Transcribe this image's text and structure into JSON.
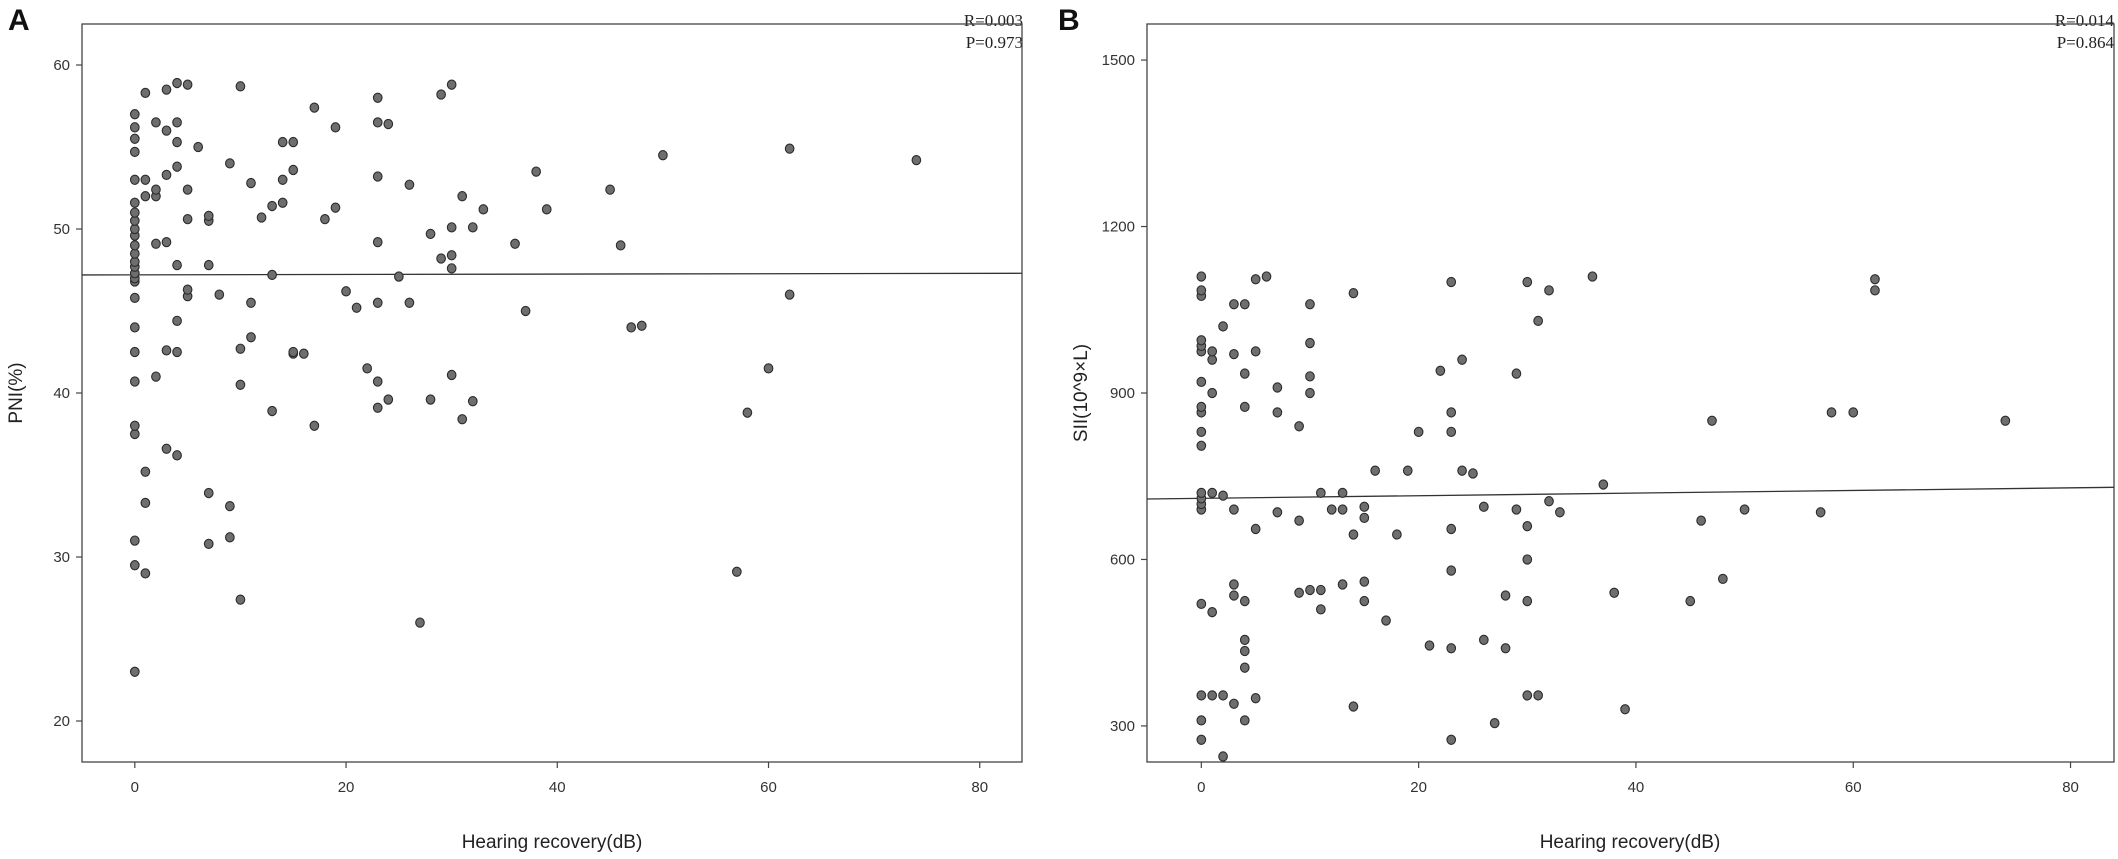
{
  "chart_data": [
    {
      "type": "scatter",
      "panel_label": "A",
      "title": "",
      "xlabel": "Hearing recovery(dB)",
      "ylabel": "PNI(%)",
      "xlim": [
        -5,
        84
      ],
      "ylim": [
        17.5,
        62.5
      ],
      "x_ticks": [
        0,
        20,
        40,
        60,
        80
      ],
      "y_ticks": [
        20,
        30,
        40,
        50,
        60
      ],
      "grid": false,
      "annotation": [
        "R=0.003",
        "P=0.973"
      ],
      "fit_line": {
        "x": [
          -5,
          84
        ],
        "y": [
          47.2,
          47.3
        ]
      },
      "points": [
        [
          0,
          23.0
        ],
        [
          0,
          29.5
        ],
        [
          0,
          31.0
        ],
        [
          0,
          37.5
        ],
        [
          0,
          38.0
        ],
        [
          0,
          40.7
        ],
        [
          0,
          42.5
        ],
        [
          0,
          44.0
        ],
        [
          0,
          45.8
        ],
        [
          0,
          46.8
        ],
        [
          0,
          47.0
        ],
        [
          0,
          47.3
        ],
        [
          0,
          47.7
        ],
        [
          0,
          48.0
        ],
        [
          0,
          48.5
        ],
        [
          0,
          49.0
        ],
        [
          0,
          49.6
        ],
        [
          0,
          50.0
        ],
        [
          0,
          50.5
        ],
        [
          0,
          51.0
        ],
        [
          0,
          51.6
        ],
        [
          0,
          53.0
        ],
        [
          0,
          54.7
        ],
        [
          0,
          55.5
        ],
        [
          0,
          56.2
        ],
        [
          0,
          57.0
        ],
        [
          1,
          29.0
        ],
        [
          1,
          33.3
        ],
        [
          1,
          35.2
        ],
        [
          1,
          52.0
        ],
        [
          1,
          53.0
        ],
        [
          1,
          58.3
        ],
        [
          2,
          41.0
        ],
        [
          2,
          49.1
        ],
        [
          2,
          52.0
        ],
        [
          2,
          52.4
        ],
        [
          2,
          56.5
        ],
        [
          3,
          36.6
        ],
        [
          3,
          42.6
        ],
        [
          3,
          49.2
        ],
        [
          3,
          53.3
        ],
        [
          3,
          56.0
        ],
        [
          3,
          58.5
        ],
        [
          4,
          36.2
        ],
        [
          4,
          42.5
        ],
        [
          4,
          44.4
        ],
        [
          4,
          47.8
        ],
        [
          4,
          53.8
        ],
        [
          4,
          55.3
        ],
        [
          4,
          56.5
        ],
        [
          4,
          58.9
        ],
        [
          5,
          45.9
        ],
        [
          5,
          46.3
        ],
        [
          5,
          50.6
        ],
        [
          5,
          52.4
        ],
        [
          5,
          58.8
        ],
        [
          6,
          55.0
        ],
        [
          7,
          30.8
        ],
        [
          7,
          33.9
        ],
        [
          7,
          47.8
        ],
        [
          7,
          50.5
        ],
        [
          7,
          50.8
        ],
        [
          8,
          46.0
        ],
        [
          9,
          31.2
        ],
        [
          9,
          33.1
        ],
        [
          9,
          54.0
        ],
        [
          10,
          27.4
        ],
        [
          10,
          40.5
        ],
        [
          10,
          42.7
        ],
        [
          10,
          58.7
        ],
        [
          11,
          43.4
        ],
        [
          11,
          45.5
        ],
        [
          11,
          52.8
        ],
        [
          12,
          50.7
        ],
        [
          13,
          38.9
        ],
        [
          13,
          47.2
        ],
        [
          13,
          51.4
        ],
        [
          14,
          51.6
        ],
        [
          14,
          53.0
        ],
        [
          14,
          55.3
        ],
        [
          15,
          42.4
        ],
        [
          15,
          42.5
        ],
        [
          15,
          53.6
        ],
        [
          15,
          55.3
        ],
        [
          16,
          42.4
        ],
        [
          17,
          38.0
        ],
        [
          17,
          57.4
        ],
        [
          18,
          50.6
        ],
        [
          19,
          51.3
        ],
        [
          19,
          56.2
        ],
        [
          20,
          46.2
        ],
        [
          21,
          45.2
        ],
        [
          22,
          41.5
        ],
        [
          23,
          39.1
        ],
        [
          23,
          40.7
        ],
        [
          23,
          45.5
        ],
        [
          23,
          49.2
        ],
        [
          23,
          53.2
        ],
        [
          23,
          56.5
        ],
        [
          23,
          58.0
        ],
        [
          24,
          39.6
        ],
        [
          24,
          56.4
        ],
        [
          25,
          47.1
        ],
        [
          26,
          45.5
        ],
        [
          26,
          52.7
        ],
        [
          27,
          26.0
        ],
        [
          28,
          39.6
        ],
        [
          28,
          49.7
        ],
        [
          29,
          48.2
        ],
        [
          29,
          58.2
        ],
        [
          30,
          41.1
        ],
        [
          30,
          47.6
        ],
        [
          30,
          48.4
        ],
        [
          30,
          50.1
        ],
        [
          30,
          58.8
        ],
        [
          31,
          38.4
        ],
        [
          31,
          52.0
        ],
        [
          32,
          39.5
        ],
        [
          32,
          50.1
        ],
        [
          33,
          51.2
        ],
        [
          36,
          49.1
        ],
        [
          37,
          45.0
        ],
        [
          38,
          53.5
        ],
        [
          39,
          51.2
        ],
        [
          45,
          52.4
        ],
        [
          46,
          49.0
        ],
        [
          47,
          44.0
        ],
        [
          48,
          44.1
        ],
        [
          50,
          54.5
        ],
        [
          57,
          29.1
        ],
        [
          58,
          38.8
        ],
        [
          60,
          41.5
        ],
        [
          62,
          46.0
        ],
        [
          62,
          54.9
        ],
        [
          74,
          54.2
        ]
      ]
    },
    {
      "type": "scatter",
      "panel_label": "B",
      "title": "",
      "xlabel": "Hearing recovery(dB)",
      "ylabel": "SII(10^9×L)",
      "xlim": [
        -5,
        84
      ],
      "ylim": [
        235,
        1565
      ],
      "x_ticks": [
        0,
        20,
        40,
        60,
        80
      ],
      "y_ticks": [
        300,
        600,
        900,
        1200,
        1500
      ],
      "grid": false,
      "annotation": [
        "R=0.014",
        "P=0.864"
      ],
      "fit_line": {
        "x": [
          -5,
          84
        ],
        "y": [
          709,
          730
        ]
      },
      "points": [
        [
          0,
          275
        ],
        [
          0,
          310
        ],
        [
          0,
          355
        ],
        [
          0,
          520
        ],
        [
          0,
          690
        ],
        [
          0,
          700
        ],
        [
          0,
          710
        ],
        [
          0,
          720
        ],
        [
          0,
          805
        ],
        [
          0,
          830
        ],
        [
          0,
          865
        ],
        [
          0,
          875
        ],
        [
          0,
          920
        ],
        [
          0,
          975
        ],
        [
          0,
          985
        ],
        [
          0,
          995
        ],
        [
          0,
          1075
        ],
        [
          0,
          1085
        ],
        [
          0,
          1110
        ],
        [
          1,
          355
        ],
        [
          1,
          505
        ],
        [
          1,
          720
        ],
        [
          1,
          900
        ],
        [
          1,
          960
        ],
        [
          1,
          975
        ],
        [
          2,
          245
        ],
        [
          2,
          355
        ],
        [
          2,
          715
        ],
        [
          2,
          1020
        ],
        [
          3,
          340
        ],
        [
          3,
          535
        ],
        [
          3,
          555
        ],
        [
          3,
          690
        ],
        [
          3,
          970
        ],
        [
          3,
          1060
        ],
        [
          4,
          310
        ],
        [
          4,
          405
        ],
        [
          4,
          435
        ],
        [
          4,
          455
        ],
        [
          4,
          525
        ],
        [
          4,
          875
        ],
        [
          4,
          935
        ],
        [
          4,
          1060
        ],
        [
          5,
          350
        ],
        [
          5,
          655
        ],
        [
          5,
          975
        ],
        [
          5,
          1105
        ],
        [
          6,
          1110
        ],
        [
          7,
          685
        ],
        [
          7,
          865
        ],
        [
          7,
          910
        ],
        [
          9,
          540
        ],
        [
          9,
          670
        ],
        [
          9,
          840
        ],
        [
          10,
          545
        ],
        [
          10,
          900
        ],
        [
          10,
          930
        ],
        [
          10,
          990
        ],
        [
          10,
          1060
        ],
        [
          11,
          510
        ],
        [
          11,
          545
        ],
        [
          11,
          720
        ],
        [
          12,
          690
        ],
        [
          13,
          555
        ],
        [
          13,
          720
        ],
        [
          13,
          690
        ],
        [
          14,
          335
        ],
        [
          14,
          645
        ],
        [
          14,
          1080
        ],
        [
          15,
          525
        ],
        [
          15,
          560
        ],
        [
          15,
          675
        ],
        [
          15,
          695
        ],
        [
          16,
          760
        ],
        [
          17,
          490
        ],
        [
          18,
          645
        ],
        [
          19,
          760
        ],
        [
          20,
          830
        ],
        [
          21,
          445
        ],
        [
          22,
          940
        ],
        [
          23,
          275
        ],
        [
          23,
          440
        ],
        [
          23,
          580
        ],
        [
          23,
          655
        ],
        [
          23,
          830
        ],
        [
          23,
          865
        ],
        [
          23,
          1100
        ],
        [
          24,
          760
        ],
        [
          24,
          960
        ],
        [
          25,
          755
        ],
        [
          26,
          455
        ],
        [
          26,
          695
        ],
        [
          27,
          305
        ],
        [
          28,
          440
        ],
        [
          28,
          535
        ],
        [
          29,
          690
        ],
        [
          29,
          935
        ],
        [
          30,
          355
        ],
        [
          30,
          525
        ],
        [
          30,
          600
        ],
        [
          30,
          660
        ],
        [
          30,
          1100
        ],
        [
          31,
          355
        ],
        [
          31,
          1030
        ],
        [
          32,
          705
        ],
        [
          32,
          1085
        ],
        [
          33,
          685
        ],
        [
          36,
          1110
        ],
        [
          37,
          735
        ],
        [
          38,
          540
        ],
        [
          39,
          330
        ],
        [
          45,
          525
        ],
        [
          46,
          670
        ],
        [
          47,
          850
        ],
        [
          48,
          565
        ],
        [
          50,
          690
        ],
        [
          57,
          685
        ],
        [
          58,
          865
        ],
        [
          60,
          865
        ],
        [
          62,
          1085
        ],
        [
          62,
          1105
        ],
        [
          74,
          850
        ]
      ]
    }
  ]
}
